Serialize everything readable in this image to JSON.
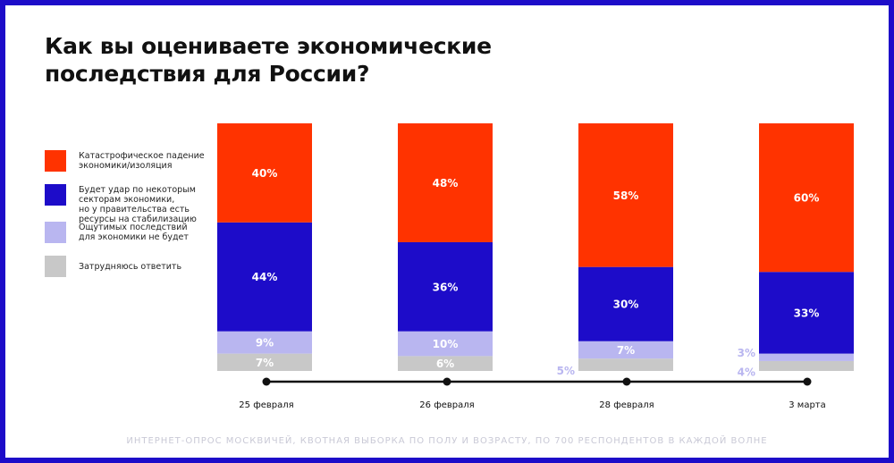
{
  "title": "Как вы оцениваете экономические последствия для России?",
  "footnote": "ИНТЕРНЕТ-ОПРОС МОСКВИЧЕЙ, КВОТНАЯ ВЫБОРКА ПО ПОЛУ И ВОЗРАСТУ, ПО 700 РЕСПОНДЕНТОВ В КАЖДОЙ ВОЛНЕ",
  "legend": [
    {
      "label": "Катастрофическое падение\nэкономики/изоляция",
      "color": "#ff3300"
    },
    {
      "label": "Будет удар по некоторым\nсекторам экономики,\nно у правительства есть\nресурсы на стабилизацию",
      "color": "#1d0cc9"
    },
    {
      "label": "Ощутимых последствий\nдля экономики не будет",
      "color": "#b9b6f0"
    },
    {
      "label": "Затрудняюсь ответить",
      "color": "#c8c8c8"
    }
  ],
  "chart_data": {
    "type": "bar",
    "stacked": true,
    "categories": [
      "25 февраля",
      "26 февраля",
      "28 февраля",
      "3 марта"
    ],
    "series": [
      {
        "name": "Катастрофическое падение экономики/изоляция",
        "color": "#ff3300",
        "values": [
          40,
          48,
          58,
          60
        ]
      },
      {
        "name": "Будет удар по некоторым секторам экономики, но у правительства есть ресурсы на стабилизацию",
        "color": "#1d0cc9",
        "values": [
          44,
          36,
          30,
          33
        ]
      },
      {
        "name": "Ощутимых последствий для экономики не будет",
        "color": "#b9b6f0",
        "values": [
          9,
          10,
          7,
          3
        ]
      },
      {
        "name": "Затрудняюсь ответить",
        "color": "#c8c8c8",
        "values": [
          7,
          6,
          5,
          4
        ]
      }
    ],
    "value_labels": [
      [
        "40%",
        "48%",
        "58%",
        "60%"
      ],
      [
        "44%",
        "36%",
        "30%",
        "33%"
      ],
      [
        "9%",
        "10%",
        "7%",
        "3%"
      ],
      [
        "7%",
        "6%",
        "5%",
        "4%"
      ]
    ],
    "ylim": [
      0,
      100
    ],
    "unit": "%"
  }
}
